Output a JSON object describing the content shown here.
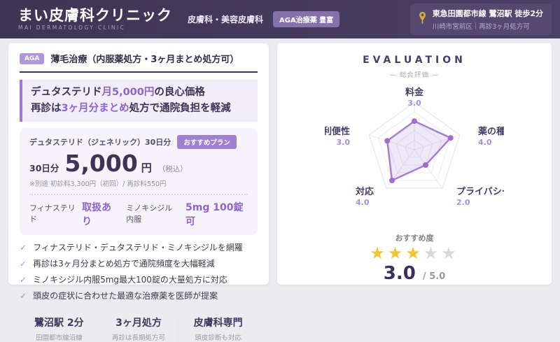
{
  "header": {
    "clinic_name": "まい皮膚科クリニック",
    "clinic_name_en": "MAI DERMATOLOGY CLINIC",
    "department": "皮膚科・美容皮膚科",
    "badge": "AGA治療薬 豊富",
    "access": {
      "line1": "東急田園都市線 鷺沼駅 徒歩2分",
      "line2": "川崎市宮前区｜再診3ヶ月処方可"
    }
  },
  "treatment": {
    "tag": "AGA",
    "title": "薄毛治療（内服薬処方・3ヶ月まとめ処方可）",
    "headline": {
      "line1": [
        {
          "text": "デュタステリド",
          "accent": false
        },
        {
          "text": "月5,000円",
          "accent": true
        },
        {
          "text": "の良心価格",
          "accent": false
        }
      ],
      "line2": [
        {
          "text": "再診は",
          "accent": false
        },
        {
          "text": "3ヶ月分まとめ",
          "accent": true
        },
        {
          "text": "処方で通院負担を軽減",
          "accent": false
        }
      ]
    },
    "plan": {
      "name": "デュタステリド（ジェネリック）30日分",
      "badge": "おすすめプラン",
      "duration": "30日分",
      "price": "5,000",
      "unit": "円",
      "tax_note": "（税込）",
      "note": "※別途 初診料3,300円（初回）/ 再診料550円",
      "options": [
        {
          "label": "フィナステリド",
          "value": "取扱あり"
        },
        {
          "label": "ミノキシジル内服",
          "value": "5mg 100錠可"
        }
      ]
    },
    "features": [
      "フィナステリド・デュタステリド・ミノキシジルを網羅",
      "再診は3ヶ月分まとめ処方で通院頻度を大幅軽減",
      "ミノキシジル内服5mg最大100錠の大量処方に対応",
      "頭皮の症状に合わせた最適な治療薬を医師が提案"
    ],
    "footer": [
      {
        "title": "鷺沼駅 2分",
        "sub": "田園都市線沿線"
      },
      {
        "title": "3ヶ月処方",
        "sub": "再診は長期処方可"
      },
      {
        "title": "皮膚科専門",
        "sub": "頭皮診断も対応"
      }
    ]
  },
  "evaluation": {
    "title": "EVALUATION",
    "subtitle": "— 総合評価 —",
    "recommend_label": "おすすめ度",
    "score": "3.0",
    "score_max": "/ 5.0",
    "stars_filled": 3,
    "stars_total": 5
  },
  "chart_data": {
    "type": "radar",
    "title": "EVALUATION 総合評価",
    "categories": [
      "料金",
      "薬の種類",
      "プライバシー",
      "対応",
      "利便性"
    ],
    "values": [
      3.0,
      4.0,
      2.0,
      4.0,
      3.0
    ],
    "max": 5,
    "grid": true,
    "accent_color": "#a57fd2",
    "dot_color": "#9e6fc9",
    "fill_color": "#8a63c5",
    "grid_color": "#eceaf1"
  },
  "icons": {
    "check": "✓",
    "star": "★"
  }
}
